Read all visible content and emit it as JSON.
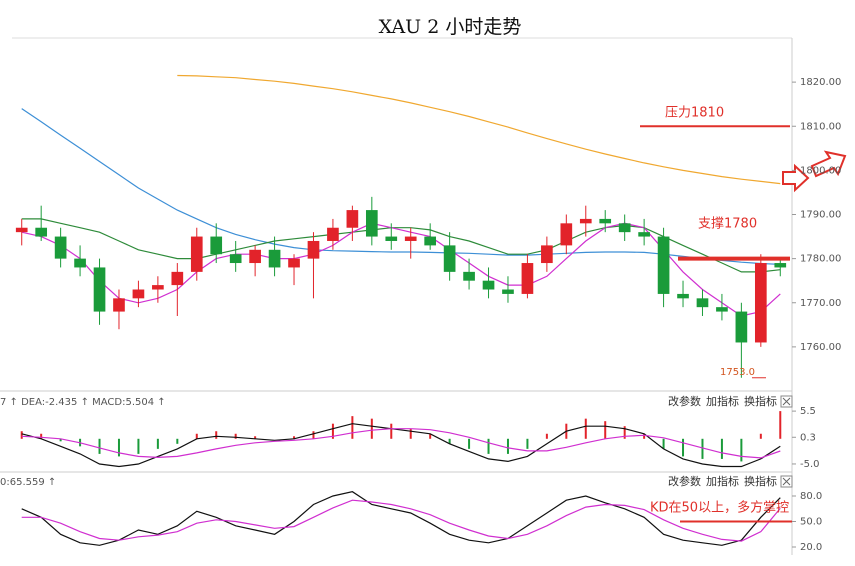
{
  "title": "XAU 2 小时走势",
  "chart_data": [
    {
      "type": "candlestick",
      "categories": [
        null,
        null,
        null,
        null,
        null,
        null,
        null,
        null,
        null,
        null,
        null,
        null,
        null,
        null,
        null,
        null,
        null,
        null,
        null,
        null,
        null,
        null,
        null,
        null,
        null,
        null,
        null,
        null,
        null,
        null,
        null,
        null,
        null,
        null,
        null,
        null,
        null,
        null,
        null,
        null
      ],
      "open": [
        1786,
        1787,
        1785,
        1780,
        1778,
        1768,
        1771,
        1773,
        1774,
        1777,
        1785,
        1781,
        1779,
        1782,
        1778,
        1780,
        1784,
        1787,
        1791,
        1785,
        1784,
        1785,
        1783,
        1777,
        1775,
        1773,
        1772,
        1779,
        1783,
        1788,
        1789,
        1788,
        1786,
        1785,
        1772,
        1771,
        1769,
        1768,
        1761,
        1779
      ],
      "high": [
        1789,
        1792,
        1787,
        1783,
        1780,
        1773,
        1775,
        1776,
        1779,
        1787,
        1788,
        1784,
        1783,
        1785,
        1781,
        1786,
        1789,
        1792,
        1794,
        1788,
        1787,
        1788,
        1786,
        1780,
        1778,
        1776,
        1781,
        1785,
        1790,
        1792,
        1791,
        1790,
        1789,
        1787,
        1775,
        1773,
        1772,
        1770,
        1781,
        1780
      ],
      "low": [
        1783,
        1784,
        1778,
        1776,
        1765,
        1764,
        1769,
        1770,
        1767,
        1775,
        1779,
        1777,
        1776,
        1776,
        1774,
        1771,
        1782,
        1784,
        1783,
        1782,
        1780,
        1782,
        1775,
        1773,
        1771,
        1770,
        1771,
        1777,
        1781,
        1785,
        1786,
        1784,
        1783,
        1769,
        1769,
        1767,
        1766,
        1753,
        1760,
        1776
      ],
      "close": [
        1787,
        1785,
        1780,
        1778,
        1768,
        1771,
        1773,
        1774,
        1777,
        1785,
        1781,
        1779,
        1782,
        1778,
        1780,
        1784,
        1787,
        1791,
        1785,
        1784,
        1785,
        1783,
        1777,
        1775,
        1773,
        1772,
        1779,
        1783,
        1788,
        1789,
        1788,
        1786,
        1785,
        1772,
        1771,
        1769,
        1768,
        1761,
        1779,
        1778
      ],
      "up_color": "#e2232a",
      "down_color": "#1a9b3a",
      "series": [
        {
          "color": "#f0a830",
          "values": [
            null,
            null,
            null,
            null,
            null,
            null,
            null,
            null,
            1821.5,
            1821.4,
            1821.2,
            1821,
            1820.6,
            1820.2,
            1819.7,
            1819.1,
            1818.5,
            1817.8,
            1817,
            1816.2,
            1815.3,
            1814.3,
            1813.3,
            1812.2,
            1811,
            1809.8,
            1808.5,
            1807.2,
            1806,
            1804.8,
            1803.7,
            1802.7,
            1801.7,
            1800.8,
            1800,
            1799.3,
            1798.6,
            1798,
            1797.5,
            1797
          ]
        },
        {
          "color": "#3d8fd6",
          "values": [
            1814,
            1811,
            1808,
            1805,
            1802,
            1799,
            1796,
            1793.5,
            1791,
            1789,
            1787,
            1785.5,
            1784.3,
            1783.3,
            1782.5,
            1782,
            1781.8,
            1781.7,
            1781.6,
            1781.5,
            1781.5,
            1781.4,
            1781.3,
            1781.2,
            1781,
            1780.8,
            1780.8,
            1781,
            1781.2,
            1781.4,
            1781.5,
            1781.5,
            1781.4,
            1781,
            1780.5,
            1780,
            1779.6,
            1779.2,
            1778.9,
            1778.7
          ]
        },
        {
          "color": "#2e8b3a",
          "values": [
            1789,
            1789,
            1788,
            1787,
            1786,
            1784,
            1782,
            1781,
            1780,
            1780,
            1781,
            1782,
            1783,
            1784,
            1784.5,
            1785,
            1785.5,
            1786,
            1786.5,
            1787,
            1787,
            1786.5,
            1785,
            1784,
            1782.5,
            1781,
            1781,
            1782,
            1784,
            1786,
            1787,
            1787.5,
            1787,
            1785,
            1783,
            1781,
            1779,
            1777,
            1777,
            1777.5
          ]
        },
        {
          "color": "#d02fd0",
          "values": [
            1786,
            1785,
            1783,
            1780,
            1775,
            1771,
            1770,
            1771,
            1773,
            1777,
            1780,
            1781,
            1781,
            1780,
            1780,
            1781,
            1783,
            1786,
            1788,
            1787,
            1786,
            1785,
            1782,
            1779,
            1776,
            1774,
            1774,
            1776,
            1780,
            1784,
            1787,
            1788,
            1787,
            1782,
            1777,
            1773,
            1770,
            1767,
            1768,
            1772
          ]
        }
      ],
      "ylim": [
        1750,
        1830
      ],
      "yticks": [
        {
          "value": 1760,
          "label": "1760.00"
        },
        {
          "value": 1770,
          "label": "1770.00"
        },
        {
          "value": 1780,
          "label": "1780.00"
        },
        {
          "value": 1790,
          "label": "1790.00"
        },
        {
          "value": 1800,
          "label": "1800.00"
        },
        {
          "value": 1810,
          "label": "1810.00"
        },
        {
          "value": 1820,
          "label": "1820.00"
        }
      ],
      "annotations": [
        {
          "text": "压力1810",
          "value": 1810
        },
        {
          "text": "支撑1780",
          "value": 1780
        },
        {
          "text": "1753.0",
          "value": 1753
        }
      ]
    },
    {
      "type": "macd",
      "categories": [
        null,
        null,
        null,
        null,
        null,
        null,
        null,
        null,
        null,
        null,
        null,
        null,
        null,
        null,
        null,
        null,
        null,
        null,
        null,
        null,
        null,
        null,
        null,
        null,
        null,
        null,
        null,
        null,
        null,
        null,
        null,
        null,
        null,
        null,
        null,
        null,
        null,
        null,
        null,
        null
      ],
      "header": "7 ↑ DEA:-2.435 ↑ MACD:5.504 ↑",
      "buttons": [
        "改参数",
        "加指标",
        "换指标"
      ],
      "values": [
        1.5,
        1,
        -0.5,
        -1.5,
        -3,
        -3.5,
        -3,
        -2,
        -1,
        1,
        1.5,
        1,
        0.5,
        0,
        0.5,
        1.5,
        3,
        4.5,
        4,
        3,
        2,
        1,
        -1,
        -2,
        -3,
        -3,
        -2,
        1,
        3,
        4,
        3.5,
        2.5,
        1,
        -2,
        -3.5,
        -4,
        -4,
        -4.5,
        1,
        5.5
      ],
      "up_color": "#e2232a",
      "down_color": "#1a9b3a",
      "series": [
        {
          "color": "#111111",
          "values": [
            1,
            0,
            -1.5,
            -3,
            -5,
            -5.5,
            -5,
            -3.5,
            -2,
            0,
            0.5,
            0.3,
            0,
            -0.3,
            0,
            1,
            2,
            3,
            2.5,
            2,
            1.5,
            1,
            -1,
            -2.5,
            -4,
            -4.5,
            -3.5,
            -1,
            1.5,
            2.5,
            2.5,
            2,
            1,
            -2,
            -4,
            -5,
            -5.5,
            -5.5,
            -4,
            -1.5
          ]
        },
        {
          "color": "#d02fd0",
          "values": [
            0.5,
            0.3,
            0,
            -0.8,
            -1.8,
            -2.8,
            -3.5,
            -3.7,
            -3.5,
            -2.8,
            -2,
            -1.3,
            -0.8,
            -0.5,
            -0.3,
            0,
            0.5,
            1.2,
            1.7,
            2,
            2,
            1.8,
            1.2,
            0.3,
            -0.8,
            -1.8,
            -2.4,
            -2.4,
            -1.7,
            -0.8,
            0,
            0.5,
            0.7,
            0.2,
            -0.8,
            -1.8,
            -2.8,
            -3.5,
            -3.8,
            -2.435
          ]
        }
      ],
      "ylim": [
        -6.2,
        8.7
      ],
      "yticks": [
        {
          "value": -5,
          "label": "-5.0"
        },
        0.3,
        5.5
      ]
    },
    {
      "type": "kd",
      "categories": [
        null,
        null,
        null,
        null,
        null,
        null,
        null,
        null,
        null,
        null,
        null,
        null,
        null,
        null,
        null,
        null,
        null,
        null,
        null,
        null,
        null,
        null,
        null,
        null,
        null,
        null,
        null,
        null,
        null,
        null,
        null,
        null,
        null,
        null,
        null,
        null,
        null,
        null,
        null,
        null
      ],
      "header": "0:65.559 ↑",
      "buttons": [
        "改参数",
        "加指标",
        "换指标"
      ],
      "series": [
        {
          "color": "#111111",
          "values": [
            65,
            55,
            35,
            25,
            22,
            28,
            40,
            35,
            45,
            62,
            55,
            45,
            40,
            35,
            50,
            70,
            80,
            85,
            70,
            65,
            60,
            48,
            35,
            28,
            25,
            30,
            45,
            60,
            75,
            80,
            72,
            65,
            55,
            35,
            28,
            25,
            22,
            28,
            55,
            78
          ]
        },
        {
          "color": "#d02fd0",
          "values": [
            55,
            55,
            48,
            38,
            30,
            28,
            32,
            34,
            38,
            48,
            52,
            50,
            46,
            42,
            44,
            55,
            66,
            75,
            73,
            70,
            65,
            58,
            48,
            40,
            33,
            30,
            35,
            45,
            57,
            67,
            70,
            69,
            64,
            52,
            42,
            35,
            29,
            27,
            38,
            65.559
          ]
        }
      ],
      "ylim": [
        10.6,
        104.7
      ],
      "yticks": [
        {
          "value": 20,
          "label": "20.0"
        },
        {
          "value": 50,
          "label": "50.0"
        },
        {
          "value": 80,
          "label": "80.0"
        }
      ],
      "annotations": [
        {
          "text": "KD在50以上，多方掌控",
          "value": 50
        }
      ]
    }
  ]
}
